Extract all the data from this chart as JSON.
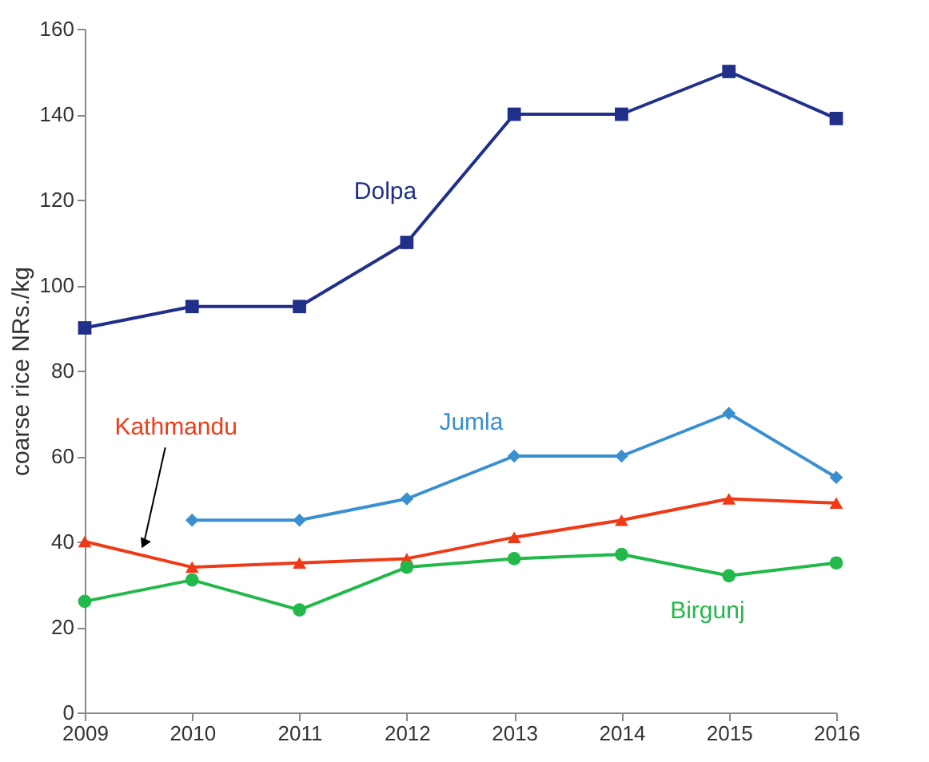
{
  "chart_data": {
    "type": "line",
    "ylabel": "coarse rice NRs./kg",
    "x": [
      2009,
      2010,
      2011,
      2012,
      2013,
      2014,
      2015,
      2016
    ],
    "xlim": [
      2009,
      2016
    ],
    "xticks": [
      2009,
      2010,
      2011,
      2012,
      2013,
      2014,
      2015,
      2016
    ],
    "ylim": [
      0,
      160
    ],
    "yticks": [
      0,
      20,
      40,
      60,
      80,
      100,
      120,
      140,
      160
    ],
    "grid": false,
    "line_style": "solid",
    "series": [
      {
        "name": "Dolpa",
        "color": "#1f2f8a",
        "marker": "square",
        "values": [
          90,
          95,
          95,
          110,
          140,
          140,
          150,
          139
        ]
      },
      {
        "name": "Jumla",
        "color": "#3a8fd0",
        "marker": "diamond",
        "values": [
          null,
          45,
          45,
          50,
          60,
          60,
          70,
          55
        ]
      },
      {
        "name": "Kathmandu",
        "color": "#f03a17",
        "marker": "triangle",
        "values": [
          40,
          34,
          35,
          36,
          41,
          45,
          50,
          49
        ]
      },
      {
        "name": "Birgunj",
        "color": "#22b94a",
        "marker": "circle",
        "values": [
          26,
          31,
          24,
          34,
          36,
          37,
          32,
          35
        ]
      }
    ]
  }
}
